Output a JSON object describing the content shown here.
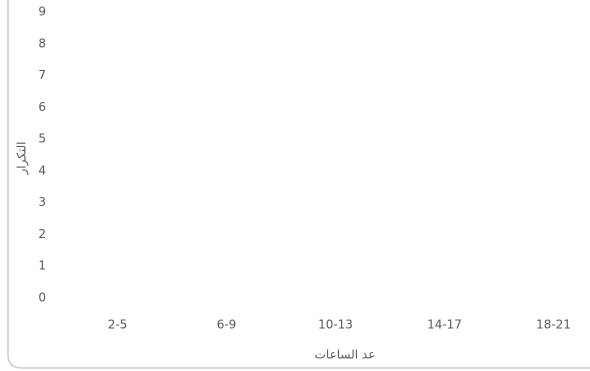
{
  "chart_data": {
    "type": "bar",
    "categories": [
      "2-5",
      "6-9",
      "10-13",
      "14-17",
      "18-21"
    ],
    "ylim": [
      0,
      9
    ],
    "yticks": [
      0,
      1,
      2,
      3,
      4,
      5,
      6,
      7,
      8,
      9
    ],
    "x_label": "عد الساعات",
    "y_label": "التكرار"
  }
}
